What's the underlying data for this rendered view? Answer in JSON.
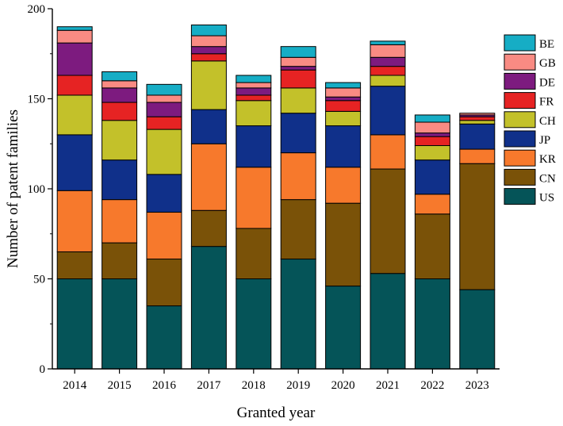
{
  "chart_data": {
    "type": "bar",
    "stacked": true,
    "title": "",
    "xlabel": "Granted year",
    "ylabel": "Number of patent families",
    "ylim": [
      0,
      200
    ],
    "yticks": [
      0,
      50,
      100,
      150,
      200
    ],
    "categories": [
      "2014",
      "2015",
      "2016",
      "2017",
      "2018",
      "2019",
      "2020",
      "2021",
      "2022",
      "2023"
    ],
    "legend_position": "right",
    "series": [
      {
        "name": "US",
        "color": "#055458",
        "values": [
          50,
          50,
          35,
          68,
          50,
          61,
          46,
          53,
          50,
          44
        ]
      },
      {
        "name": "CN",
        "color": "#7a5208",
        "values": [
          15,
          20,
          26,
          20,
          28,
          33,
          46,
          58,
          36,
          70
        ]
      },
      {
        "name": "KR",
        "color": "#f7792c",
        "values": [
          34,
          24,
          26,
          37,
          34,
          26,
          20,
          19,
          11,
          8
        ]
      },
      {
        "name": "JP",
        "color": "#10308a",
        "values": [
          31,
          22,
          21,
          19,
          23,
          22,
          23,
          27,
          19,
          14
        ]
      },
      {
        "name": "CH",
        "color": "#c3c12a",
        "values": [
          22,
          22,
          25,
          27,
          14,
          14,
          8,
          6,
          8,
          2
        ]
      },
      {
        "name": "FR",
        "color": "#e62323",
        "values": [
          11,
          10,
          7,
          4,
          3,
          10,
          6,
          5,
          5,
          2
        ]
      },
      {
        "name": "DE",
        "color": "#7d1b7f",
        "values": [
          18,
          8,
          8,
          4,
          4,
          2,
          2,
          5,
          2,
          1
        ]
      },
      {
        "name": "GB",
        "color": "#f98b83",
        "values": [
          7,
          4,
          4,
          6,
          3,
          5,
          5,
          7,
          6,
          1
        ]
      },
      {
        "name": "BE",
        "color": "#16adc5",
        "values": [
          2,
          5,
          6,
          6,
          4,
          6,
          3,
          2,
          4,
          0
        ]
      }
    ]
  }
}
